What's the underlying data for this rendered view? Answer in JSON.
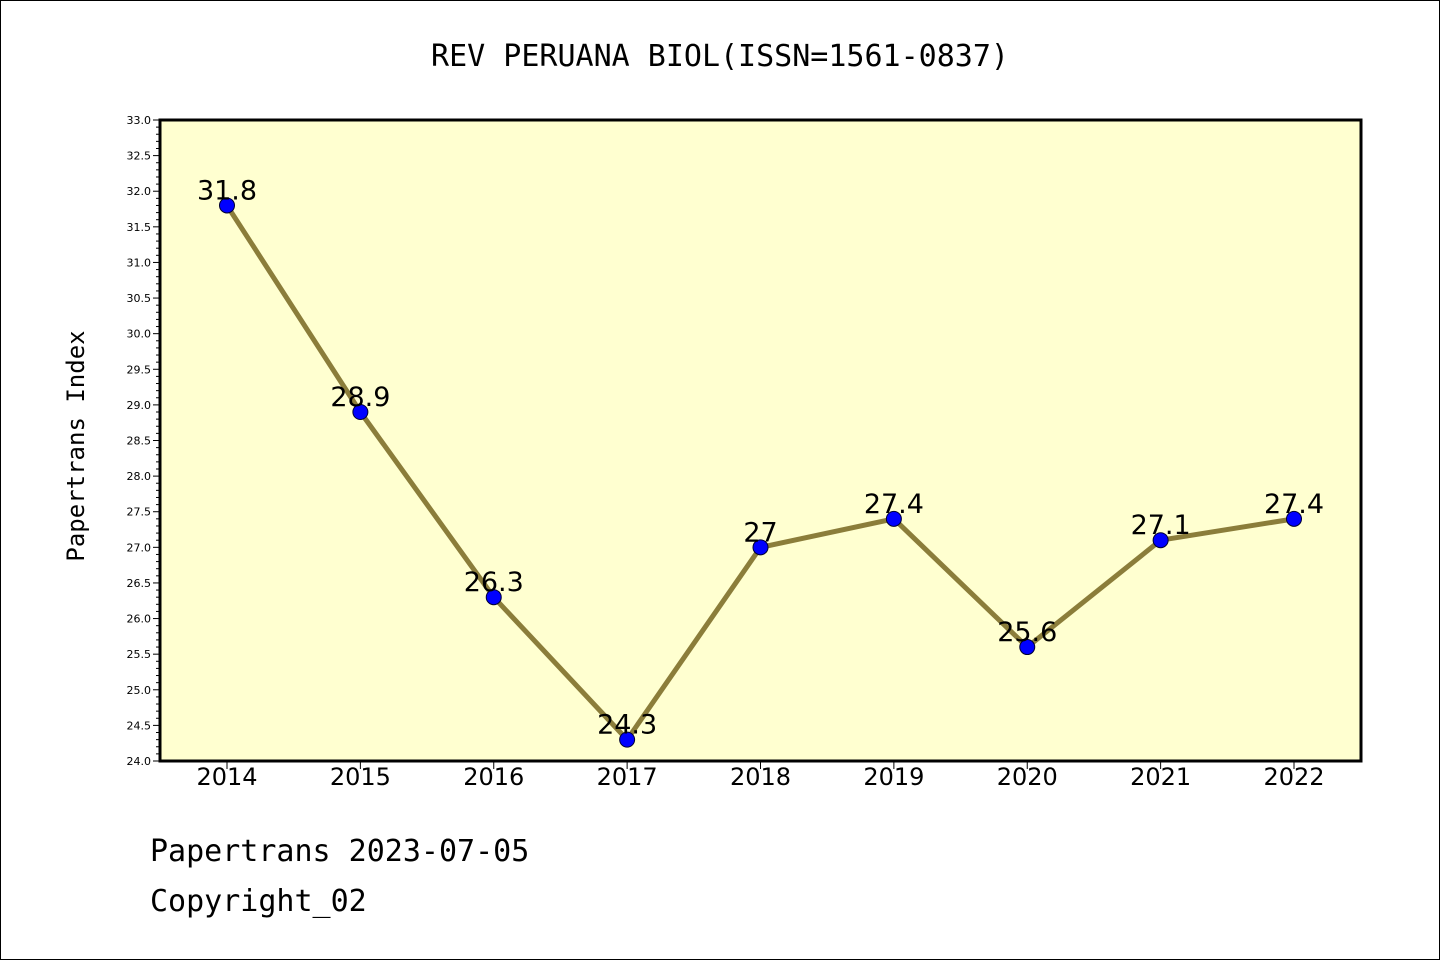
{
  "chart_data": {
    "type": "line",
    "title": "REV PERUANA BIOL(ISSN=1561-0837)",
    "xlabel": "",
    "ylabel": "Papertrans Index",
    "categories": [
      "2014",
      "2015",
      "2016",
      "2017",
      "2018",
      "2019",
      "2020",
      "2021",
      "2022"
    ],
    "series": [
      {
        "values": [
          31.8,
          28.9,
          26.3,
          24.3,
          27.0,
          27.4,
          25.6,
          27.1,
          27.4
        ]
      }
    ],
    "data_labels": [
      "31.8",
      "28.9",
      "26.3",
      "24.3",
      "27",
      "27.4",
      "25.6",
      "27.1",
      "27.4"
    ],
    "ylim": [
      24.0,
      33.0
    ],
    "yticks": [
      "24.0",
      "24.5",
      "25.0",
      "25.5",
      "26.0",
      "26.5",
      "27.0",
      "27.5",
      "28.0",
      "28.5",
      "29.0",
      "29.5",
      "30.0",
      "30.5",
      "31.0",
      "31.5",
      "32.0",
      "32.5",
      "33.0"
    ],
    "grid": false,
    "colors": {
      "plot_background": "#ffffd0",
      "line": "#8b7d3a",
      "marker": "#0000ff"
    }
  },
  "footer": {
    "line1": "Papertrans 2023-07-05",
    "line2": "Copyright_02"
  }
}
